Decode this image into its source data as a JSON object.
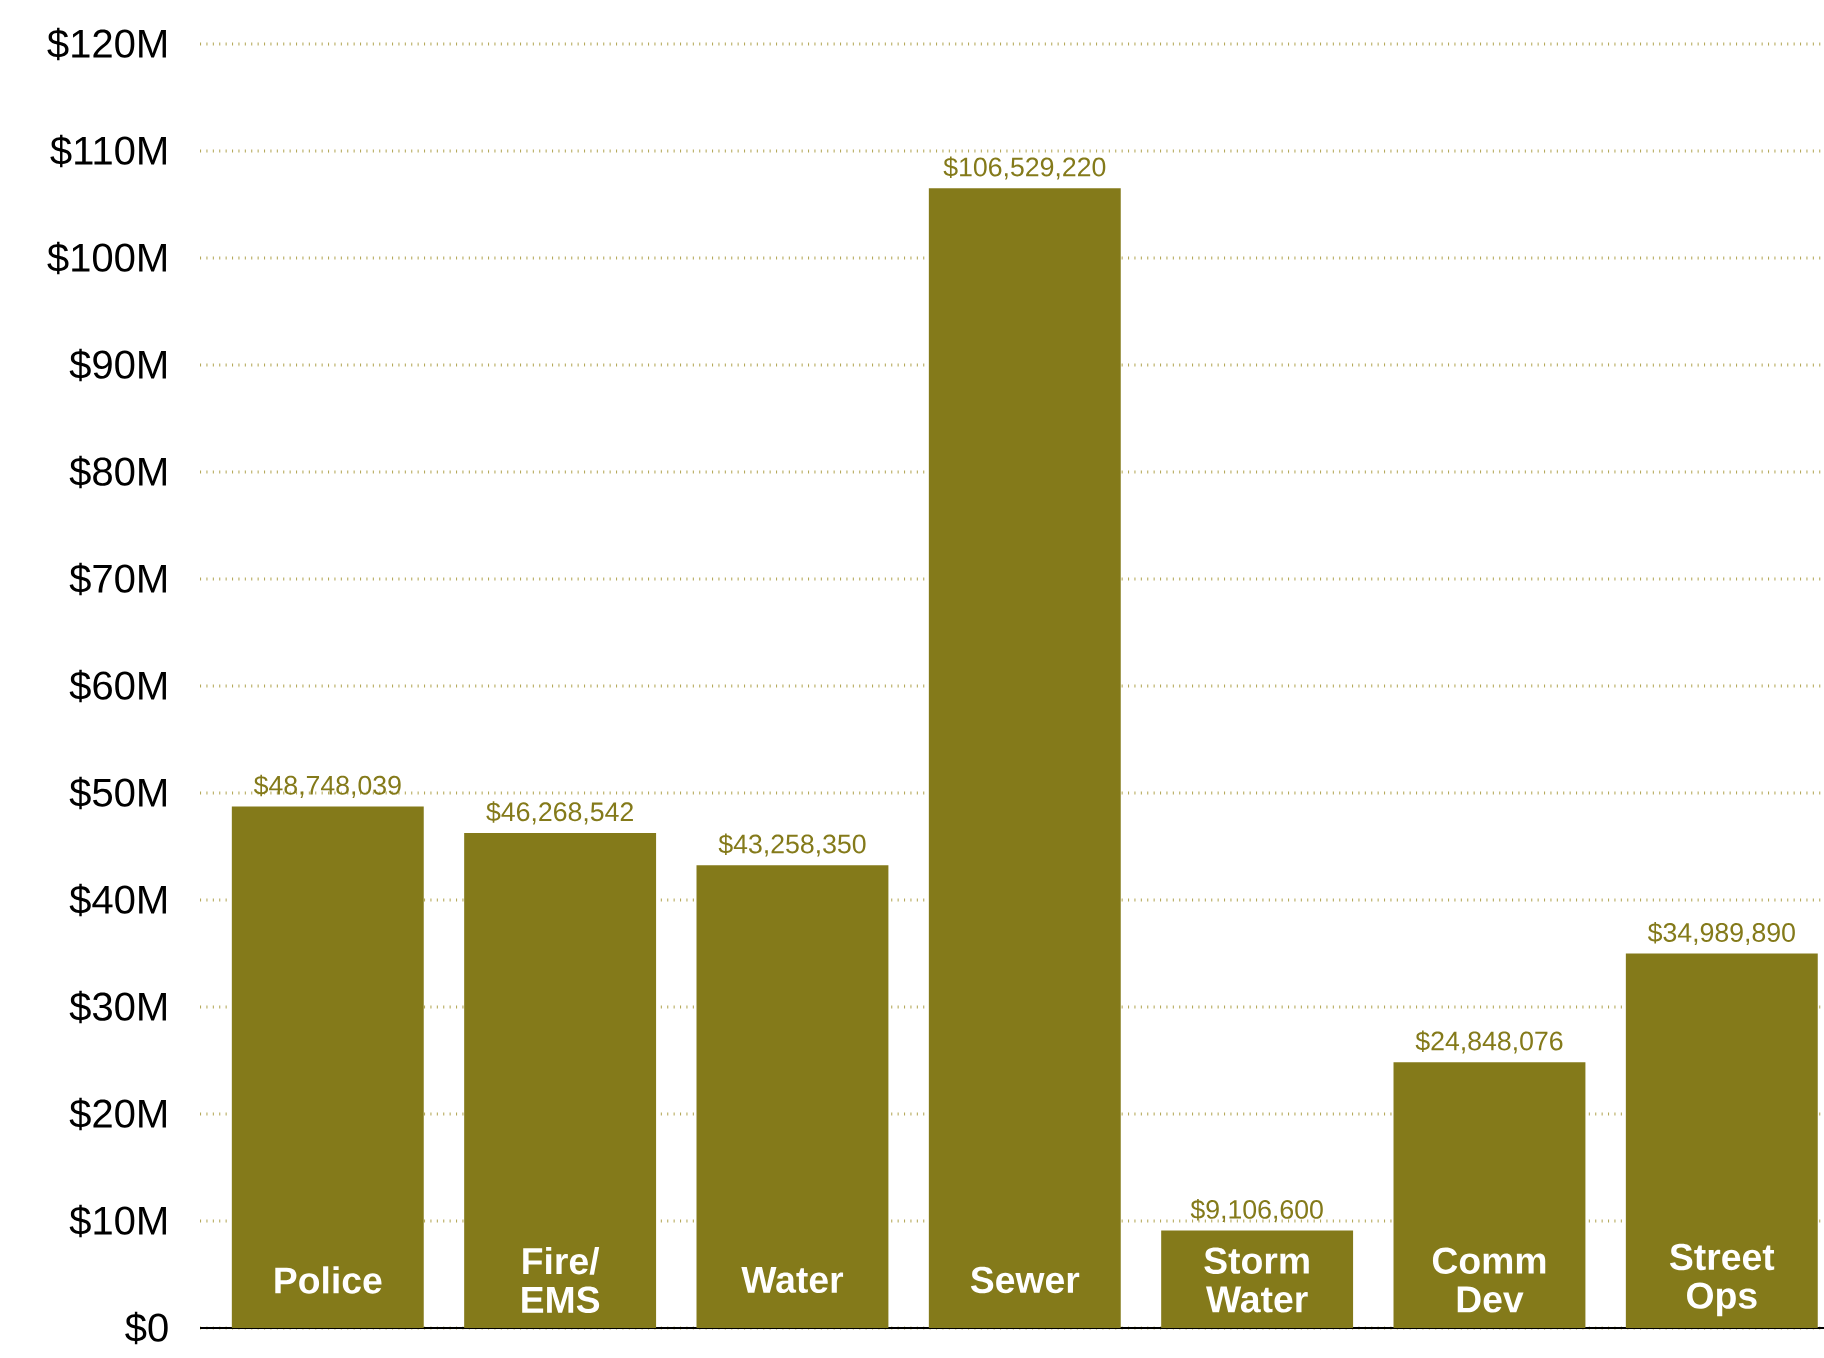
{
  "chart_data": {
    "type": "bar",
    "categories": [
      "Police",
      "Fire/ EMS",
      "Water",
      "Sewer",
      "Storm Water",
      "Comm Dev",
      "Street Ops"
    ],
    "values": [
      48748039,
      46268542,
      43258350,
      106529220,
      9106600,
      24848076,
      34989890
    ],
    "value_labels": [
      "$48,748,039",
      "$46,268,542",
      "$43,258,350",
      "$106,529,220",
      "$9,106,600",
      "$24,848,076",
      "$34,989,890"
    ],
    "color": "#847a1a",
    "ylim": [
      0,
      120000000
    ],
    "yticks": [
      {
        "value": 0,
        "label": "$0"
      },
      {
        "value": 10000000,
        "label": "$10M"
      },
      {
        "value": 20000000,
        "label": "$20M"
      },
      {
        "value": 30000000,
        "label": "$30M"
      },
      {
        "value": 40000000,
        "label": "$40M"
      },
      {
        "value": 50000000,
        "label": "$50M"
      },
      {
        "value": 60000000,
        "label": "$60M"
      },
      {
        "value": 70000000,
        "label": "$70M"
      },
      {
        "value": 80000000,
        "label": "$80M"
      },
      {
        "value": 90000000,
        "label": "$90M"
      },
      {
        "value": 100000000,
        "label": "$100M"
      },
      {
        "value": 110000000,
        "label": "$110M"
      },
      {
        "value": 120000000,
        "label": "$120M"
      }
    ],
    "grid": "y"
  }
}
